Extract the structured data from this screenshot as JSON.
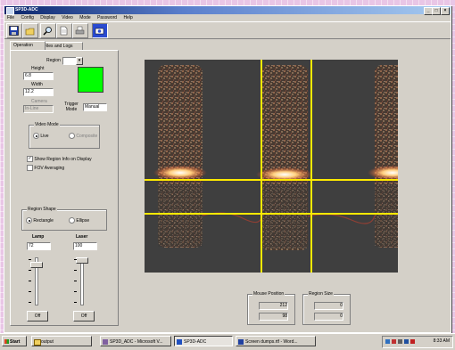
{
  "window": {
    "title": "SP3D-ADC",
    "controls": [
      "_",
      "□",
      "×"
    ]
  },
  "menu": [
    "File",
    "Config",
    "Display",
    "Video",
    "Mode",
    "Password",
    "Help"
  ],
  "tabs": [
    {
      "label": "Operation",
      "selected": true
    },
    {
      "label": "Files and Logs",
      "selected": false
    }
  ],
  "operation": {
    "region_label": "Region",
    "region_value": "",
    "height_label": "Height",
    "height_value": "6.8",
    "width_label": "Width",
    "width_value": "12.2",
    "camera_label": "Camera",
    "camera_value": "In-Line",
    "trigger_mode_label": "Trigger Mode",
    "trigger_mode_value": "Manual",
    "indicator_color": "#00ff00",
    "video_mode": {
      "title": "Video Mode",
      "options": [
        {
          "label": "Live",
          "selected": true
        },
        {
          "label": "Composite",
          "selected": false
        }
      ]
    },
    "show_region_info": {
      "label": "Show Region Info on Display",
      "checked": true
    },
    "fov_averaging": {
      "label": "FOV Averaging",
      "checked": false
    },
    "region_shape": {
      "title": "Region Shape",
      "options": [
        {
          "label": "Rectangle",
          "selected": true
        },
        {
          "label": "Ellipse",
          "selected": false
        }
      ]
    },
    "lamp": {
      "label": "Lamp",
      "value": "72",
      "button": "Off"
    },
    "laser": {
      "label": "Laser",
      "value": "100",
      "button": "Off"
    }
  },
  "mouse_position": {
    "title": "Mouse Position",
    "x": "212",
    "y": "98"
  },
  "region_size": {
    "title": "Region Size",
    "w": "0",
    "h": "0"
  },
  "roi_color": "#ffea00",
  "taskbar": {
    "start_label": "Start",
    "items": [
      {
        "label": "output",
        "active": false
      },
      {
        "label": "SP3D_ADC - Microsoft V...",
        "active": false
      },
      {
        "label": "SP3D-ADC",
        "active": true
      },
      {
        "label": "Screen dumps.rtf - Word...",
        "active": false
      }
    ],
    "clock": "8:33 AM"
  }
}
